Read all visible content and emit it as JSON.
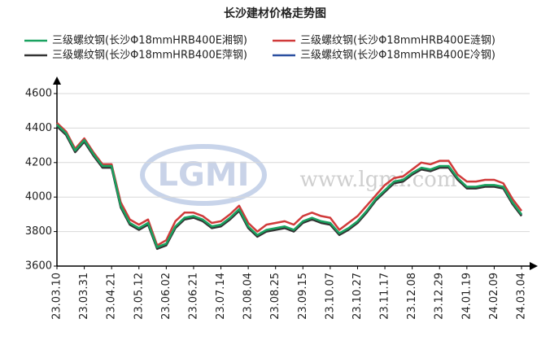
{
  "chart_data": {
    "type": "line",
    "title": "长沙建材价格走势图",
    "watermark_logo": "LGMI",
    "watermark_url": "www.lgmi.com",
    "categories": [
      "23.03.10",
      null,
      null,
      "23.03.31",
      null,
      null,
      "23.04.21",
      null,
      null,
      "23.05.12",
      null,
      null,
      "23.06.02",
      null,
      null,
      "23.06.21",
      null,
      null,
      "23.07.14",
      null,
      null,
      "23.08.04",
      null,
      null,
      "23.08.25",
      null,
      null,
      "23.09.15",
      null,
      null,
      "23.10.07",
      null,
      null,
      "23.10.27",
      null,
      null,
      "23.11.17",
      null,
      null,
      "23.12.08",
      null,
      null,
      "23.12.29",
      null,
      null,
      "24.01.19",
      null,
      null,
      "24.02.09",
      null,
      null,
      "24.03.04"
    ],
    "series": [
      {
        "name": "三级螺纹钢(长沙Φ18mmHRB400E湘钢)",
        "color": "#1aa260",
        "values": [
          4420,
          4370,
          4270,
          4330,
          4250,
          4180,
          4180,
          3950,
          3850,
          3820,
          3850,
          3710,
          3730,
          3830,
          3880,
          3890,
          3870,
          3830,
          3840,
          3880,
          3930,
          3830,
          3780,
          3810,
          3820,
          3830,
          3810,
          3860,
          3880,
          3860,
          3850,
          3790,
          3820,
          3860,
          3920,
          3990,
          4040,
          4090,
          4100,
          4140,
          4170,
          4160,
          4180,
          4180,
          4110,
          4060,
          4060,
          4070,
          4070,
          4060,
          3970,
          3900
        ]
      },
      {
        "name": "三级螺纹钢(长沙Φ18mmHRB400E涟钢)",
        "color": "#d03a3a",
        "values": [
          4430,
          4380,
          4280,
          4340,
          4260,
          4190,
          4190,
          3970,
          3870,
          3840,
          3870,
          3720,
          3750,
          3860,
          3910,
          3910,
          3890,
          3850,
          3860,
          3900,
          3950,
          3850,
          3800,
          3840,
          3850,
          3860,
          3840,
          3890,
          3910,
          3890,
          3880,
          3810,
          3850,
          3890,
          3950,
          4010,
          4070,
          4110,
          4120,
          4160,
          4200,
          4190,
          4210,
          4210,
          4130,
          4090,
          4090,
          4100,
          4100,
          4080,
          3990,
          3920
        ]
      },
      {
        "name": "三级螺纹钢(长沙Φ18mmHRB400E萍钢)",
        "color": "#333333",
        "values": [
          4410,
          4360,
          4260,
          4320,
          4240,
          4170,
          4170,
          3940,
          3840,
          3810,
          3840,
          3700,
          3720,
          3820,
          3870,
          3880,
          3860,
          3820,
          3830,
          3870,
          3920,
          3820,
          3770,
          3800,
          3810,
          3820,
          3800,
          3850,
          3870,
          3850,
          3840,
          3780,
          3810,
          3850,
          3910,
          3980,
          4030,
          4080,
          4090,
          4130,
          4160,
          4150,
          4170,
          4170,
          4100,
          4050,
          4050,
          4060,
          4060,
          4050,
          3960,
          3890
        ]
      },
      {
        "name": "三级螺纹钢(长沙Φ18mmHRB400E冷钢)",
        "color": "#2a4fa0",
        "values": [
          4415,
          4365,
          4265,
          4325,
          4245,
          4175,
          4175,
          3945,
          3845,
          3815,
          3845,
          3705,
          3725,
          3825,
          3875,
          3885,
          3865,
          3825,
          3835,
          3875,
          3925,
          3825,
          3775,
          3805,
          3815,
          3825,
          3805,
          3855,
          3875,
          3855,
          3845,
          3785,
          3815,
          3855,
          3915,
          3985,
          4035,
          4085,
          4095,
          4135,
          4165,
          4155,
          4175,
          4175,
          4105,
          4055,
          4055,
          4065,
          4065,
          4055,
          3965,
          3895
        ]
      }
    ],
    "ylim": [
      3600,
      4600
    ],
    "yticks": [
      3600,
      3800,
      4000,
      4200,
      4400,
      4600
    ],
    "grid": true
  }
}
